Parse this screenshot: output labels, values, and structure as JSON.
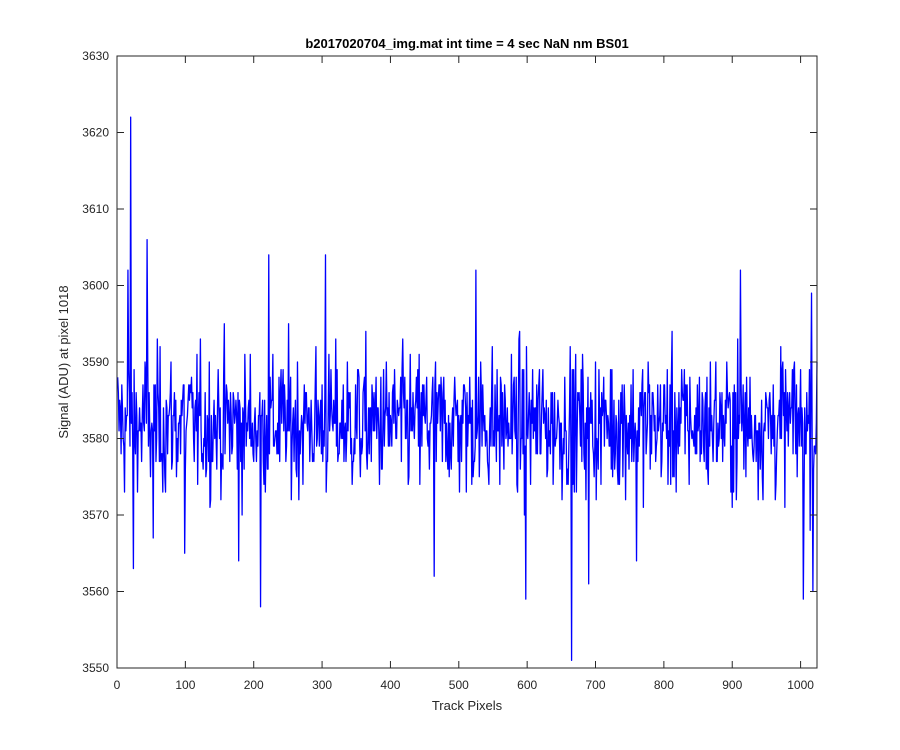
{
  "chart_data": {
    "type": "line",
    "title": "b2017020704_img.mat int time = 4 sec  NaN nm BS01",
    "xlabel": "Track Pixels",
    "ylabel": "Signal (ADU) at pixel 1018",
    "xlim": [
      0,
      1024
    ],
    "ylim": [
      3550,
      3630
    ],
    "xticks": [
      0,
      100,
      200,
      300,
      400,
      500,
      600,
      700,
      800,
      900,
      1000
    ],
    "yticks": [
      3550,
      3560,
      3570,
      3580,
      3590,
      3600,
      3610,
      3620,
      3630
    ],
    "grid": false,
    "series": [
      {
        "color": "#0000ff",
        "x_start": 1,
        "x_end": 1024,
        "mean": 3582,
        "noise_sd": 6.5,
        "spikes": [
          [
            20,
            3622
          ],
          [
            24,
            3563
          ],
          [
            44,
            3606
          ],
          [
            53,
            3567
          ],
          [
            16,
            3602
          ],
          [
            222,
            3604
          ],
          [
            305,
            3604
          ],
          [
            210,
            3558
          ],
          [
            178,
            3564
          ],
          [
            99,
            3565
          ],
          [
            464,
            3562
          ],
          [
            525,
            3602
          ],
          [
            598,
            3559
          ],
          [
            665,
            3551
          ],
          [
            690,
            3561
          ],
          [
            760,
            3564
          ],
          [
            912,
            3602
          ],
          [
            1004,
            3559
          ],
          [
            1016,
            3599
          ],
          [
            1018,
            3560
          ]
        ]
      }
    ]
  }
}
